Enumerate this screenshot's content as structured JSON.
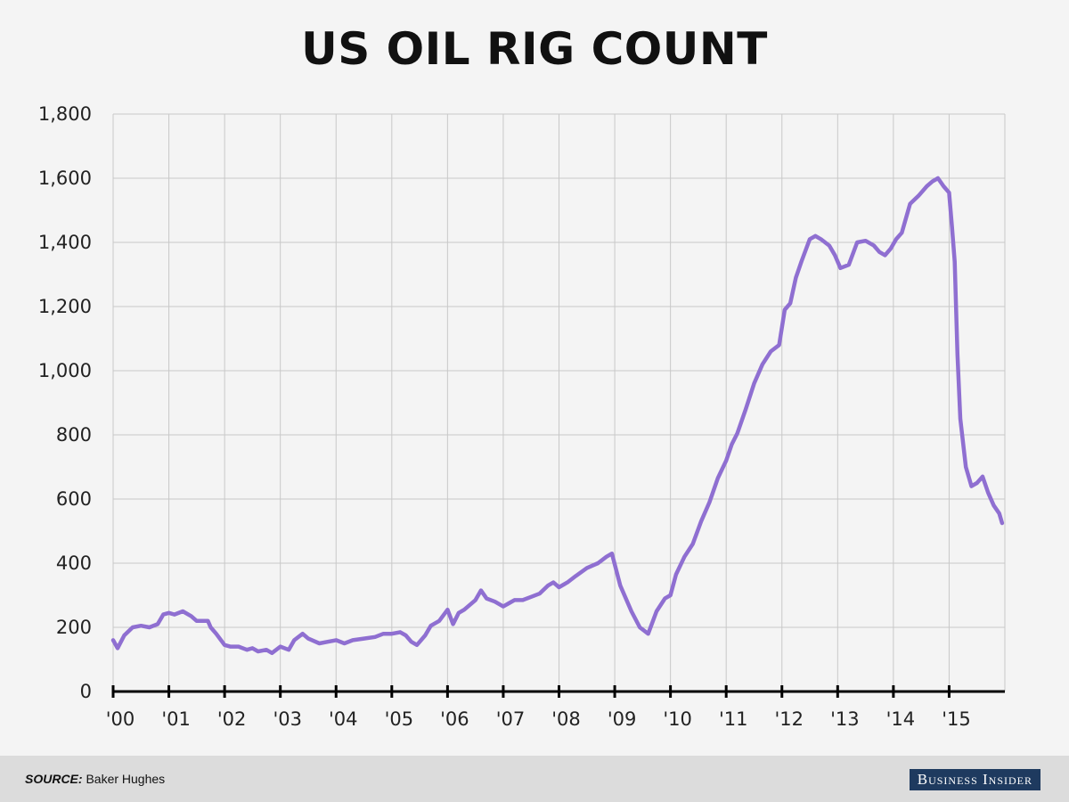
{
  "chart_data": {
    "type": "line",
    "title": "US OIL RIG COUNT",
    "ylim": [
      0,
      1800
    ],
    "yticks": [
      0,
      200,
      400,
      600,
      800,
      1000,
      1200,
      1400,
      1600,
      1800
    ],
    "ytick_labels": [
      "0",
      "200",
      "400",
      "600",
      "800",
      "1,000",
      "1,200",
      "1,400",
      "1,600",
      "1,800"
    ],
    "xlim": [
      2000,
      2016
    ],
    "xticks": [
      2000,
      2001,
      2002,
      2003,
      2004,
      2005,
      2006,
      2007,
      2008,
      2009,
      2010,
      2011,
      2012,
      2013,
      2014,
      2015
    ],
    "xtick_labels": [
      "'00",
      "'01",
      "'02",
      "'03",
      "'04",
      "'05",
      "'06",
      "'07",
      "'08",
      "'09",
      "'10",
      "'11",
      "'12",
      "'13",
      "'14",
      "'15"
    ],
    "grid": true,
    "legend": "none",
    "series": [
      {
        "color": "#8f6fd1",
        "x": [
          2000.0,
          2000.08,
          2000.2,
          2000.35,
          2000.5,
          2000.65,
          2000.8,
          2000.9,
          2001.0,
          2001.1,
          2001.25,
          2001.4,
          2001.5,
          2001.6,
          2001.7,
          2001.75,
          2001.85,
          2002.0,
          2002.1,
          2002.25,
          2002.4,
          2002.5,
          2002.6,
          2002.75,
          2002.85,
          2003.0,
          2003.15,
          2003.25,
          2003.4,
          2003.5,
          2003.7,
          2003.85,
          2004.0,
          2004.15,
          2004.3,
          2004.5,
          2004.7,
          2004.85,
          2005.0,
          2005.15,
          2005.25,
          2005.35,
          2005.45,
          2005.6,
          2005.7,
          2005.85,
          2006.0,
          2006.1,
          2006.2,
          2006.3,
          2006.5,
          2006.6,
          2006.7,
          2006.85,
          2007.0,
          2007.1,
          2007.2,
          2007.35,
          2007.5,
          2007.65,
          2007.8,
          2007.9,
          2008.0,
          2008.15,
          2008.3,
          2008.5,
          2008.7,
          2008.85,
          2008.95,
          2009.1,
          2009.3,
          2009.45,
          2009.6,
          2009.75,
          2009.9,
          2010.0,
          2010.1,
          2010.25,
          2010.4,
          2010.55,
          2010.7,
          2010.85,
          2011.0,
          2011.1,
          2011.2,
          2011.35,
          2011.5,
          2011.65,
          2011.8,
          2011.95,
          2012.05,
          2012.15,
          2012.25,
          2012.35,
          2012.5,
          2012.6,
          2012.7,
          2012.85,
          2012.95,
          2013.05,
          2013.2,
          2013.35,
          2013.5,
          2013.65,
          2013.75,
          2013.85,
          2013.95,
          2014.05,
          2014.15,
          2014.3,
          2014.45,
          2014.6,
          2014.7,
          2014.8,
          2014.9,
          2015.0,
          2015.05,
          2015.1,
          2015.15,
          2015.2,
          2015.3,
          2015.4,
          2015.5,
          2015.6,
          2015.7,
          2015.8,
          2015.9,
          2015.95
        ],
        "values": [
          160,
          135,
          175,
          200,
          205,
          200,
          210,
          240,
          245,
          240,
          250,
          235,
          220,
          220,
          220,
          200,
          180,
          145,
          140,
          140,
          130,
          135,
          125,
          130,
          120,
          140,
          130,
          160,
          180,
          165,
          150,
          155,
          160,
          150,
          160,
          165,
          170,
          180,
          180,
          185,
          175,
          155,
          145,
          175,
          205,
          220,
          255,
          210,
          245,
          255,
          285,
          315,
          290,
          280,
          265,
          275,
          285,
          285,
          295,
          305,
          330,
          340,
          325,
          340,
          360,
          385,
          400,
          420,
          430,
          330,
          250,
          200,
          180,
          250,
          290,
          300,
          365,
          420,
          460,
          530,
          590,
          665,
          720,
          770,
          805,
          880,
          960,
          1020,
          1060,
          1080,
          1190,
          1210,
          1290,
          1340,
          1410,
          1420,
          1410,
          1390,
          1360,
          1320,
          1330,
          1400,
          1405,
          1390,
          1370,
          1360,
          1380,
          1410,
          1430,
          1520,
          1545,
          1575,
          1590,
          1600,
          1575,
          1555,
          1450,
          1340,
          1050,
          850,
          700,
          640,
          650,
          670,
          620,
          580,
          555,
          525
        ]
      }
    ]
  },
  "footer": {
    "source_label": "SOURCE:",
    "source_text": "Baker Hughes",
    "brand": "Business Insider"
  }
}
